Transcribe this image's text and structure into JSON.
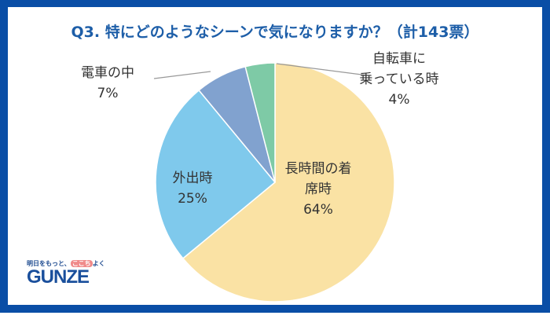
{
  "chart_data": {
    "type": "pie",
    "title": "Q3. 特にどのようなシーンで気になりますか？（計143票）",
    "start": "12 o'clock, clockwise",
    "slices": [
      {
        "label_lines": [
          "長時間の着",
          "席時"
        ],
        "value": 64,
        "value_label": "64%",
        "color": "#fae2a4"
      },
      {
        "label_lines": [
          "外出時"
        ],
        "value": 25,
        "value_label": "25%",
        "color": "#7fc9ec"
      },
      {
        "label_lines": [
          "電車の中"
        ],
        "value": 7,
        "value_label": "7%",
        "color": "#81a2cf"
      },
      {
        "label_lines": [
          "自転車に",
          "乗っている時"
        ],
        "value": 4,
        "value_label": "4%",
        "color": "#7ecaa6"
      }
    ]
  },
  "logo": {
    "tagline_pre": "明日をもっと、",
    "tagline_mark": "ここち",
    "tagline_post": "よく",
    "brand": "GUNZE"
  }
}
